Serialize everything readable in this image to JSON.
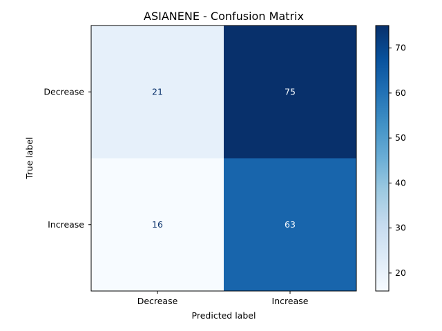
{
  "chart_data": {
    "type": "heatmap",
    "title": "ASIANENE - Confusion Matrix",
    "xlabel": "Predicted label",
    "ylabel": "True label",
    "x_categories": [
      "Decrease",
      "Increase"
    ],
    "y_categories": [
      "Decrease",
      "Increase"
    ],
    "values": [
      [
        21,
        75
      ],
      [
        16,
        63
      ]
    ],
    "colormap": "Blues",
    "colorbar": {
      "min": 16,
      "max": 75,
      "ticks": [
        20,
        30,
        40,
        50,
        60,
        70
      ]
    },
    "colors": {
      "low": "#f7fbff",
      "high": "#08306b",
      "text_on_light": "#08306b",
      "text_on_dark": "#f7fbff"
    }
  }
}
